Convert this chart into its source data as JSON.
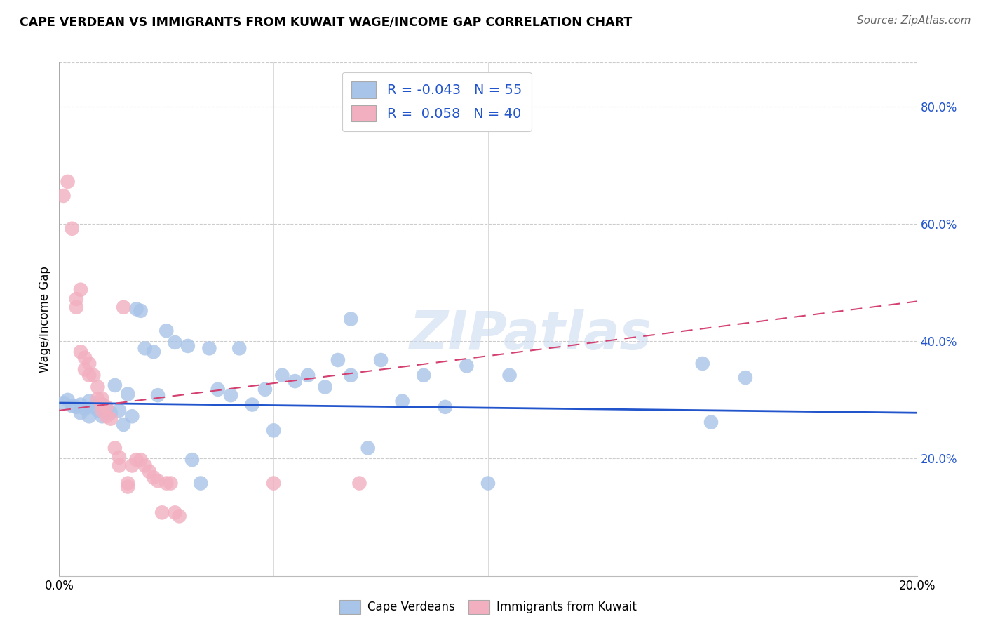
{
  "title": "CAPE VERDEAN VS IMMIGRANTS FROM KUWAIT WAGE/INCOME GAP CORRELATION CHART",
  "source": "Source: ZipAtlas.com",
  "ylabel": "Wage/Income Gap",
  "legend_blue_r": "-0.043",
  "legend_blue_n": "55",
  "legend_pink_r": "0.058",
  "legend_pink_n": "40",
  "legend_label_blue": "Cape Verdeans",
  "legend_label_pink": "Immigrants from Kuwait",
  "blue_color": "#a8c4e8",
  "pink_color": "#f2afc0",
  "blue_line_color": "#2255cc",
  "pink_line_color": "#d44070",
  "watermark": "ZIPatlas",
  "blue_scatter": [
    [
      0.001,
      0.295
    ],
    [
      0.002,
      0.3
    ],
    [
      0.003,
      0.29
    ],
    [
      0.004,
      0.288
    ],
    [
      0.005,
      0.292
    ],
    [
      0.005,
      0.278
    ],
    [
      0.006,
      0.285
    ],
    [
      0.007,
      0.298
    ],
    [
      0.007,
      0.272
    ],
    [
      0.008,
      0.288
    ],
    [
      0.009,
      0.282
    ],
    [
      0.01,
      0.292
    ],
    [
      0.01,
      0.272
    ],
    [
      0.011,
      0.285
    ],
    [
      0.012,
      0.278
    ],
    [
      0.013,
      0.325
    ],
    [
      0.014,
      0.282
    ],
    [
      0.015,
      0.258
    ],
    [
      0.016,
      0.31
    ],
    [
      0.017,
      0.272
    ],
    [
      0.018,
      0.455
    ],
    [
      0.019,
      0.452
    ],
    [
      0.02,
      0.388
    ],
    [
      0.022,
      0.382
    ],
    [
      0.023,
      0.308
    ],
    [
      0.025,
      0.418
    ],
    [
      0.027,
      0.398
    ],
    [
      0.03,
      0.392
    ],
    [
      0.031,
      0.198
    ],
    [
      0.033,
      0.158
    ],
    [
      0.035,
      0.388
    ],
    [
      0.037,
      0.318
    ],
    [
      0.04,
      0.308
    ],
    [
      0.042,
      0.388
    ],
    [
      0.045,
      0.292
    ],
    [
      0.048,
      0.318
    ],
    [
      0.05,
      0.248
    ],
    [
      0.052,
      0.342
    ],
    [
      0.055,
      0.332
    ],
    [
      0.058,
      0.342
    ],
    [
      0.062,
      0.322
    ],
    [
      0.065,
      0.368
    ],
    [
      0.068,
      0.438
    ],
    [
      0.068,
      0.342
    ],
    [
      0.072,
      0.218
    ],
    [
      0.075,
      0.368
    ],
    [
      0.08,
      0.298
    ],
    [
      0.085,
      0.342
    ],
    [
      0.09,
      0.288
    ],
    [
      0.095,
      0.358
    ],
    [
      0.1,
      0.158
    ],
    [
      0.105,
      0.342
    ],
    [
      0.15,
      0.362
    ],
    [
      0.152,
      0.262
    ],
    [
      0.16,
      0.338
    ]
  ],
  "pink_scatter": [
    [
      0.001,
      0.648
    ],
    [
      0.002,
      0.672
    ],
    [
      0.003,
      0.592
    ],
    [
      0.004,
      0.472
    ],
    [
      0.004,
      0.458
    ],
    [
      0.005,
      0.488
    ],
    [
      0.005,
      0.382
    ],
    [
      0.006,
      0.372
    ],
    [
      0.006,
      0.352
    ],
    [
      0.007,
      0.362
    ],
    [
      0.007,
      0.342
    ],
    [
      0.008,
      0.342
    ],
    [
      0.009,
      0.322
    ],
    [
      0.009,
      0.302
    ],
    [
      0.01,
      0.302
    ],
    [
      0.01,
      0.292
    ],
    [
      0.01,
      0.282
    ],
    [
      0.011,
      0.288
    ],
    [
      0.011,
      0.272
    ],
    [
      0.012,
      0.268
    ],
    [
      0.013,
      0.218
    ],
    [
      0.014,
      0.202
    ],
    [
      0.014,
      0.188
    ],
    [
      0.015,
      0.458
    ],
    [
      0.016,
      0.158
    ],
    [
      0.016,
      0.152
    ],
    [
      0.017,
      0.188
    ],
    [
      0.018,
      0.198
    ],
    [
      0.019,
      0.198
    ],
    [
      0.02,
      0.188
    ],
    [
      0.021,
      0.178
    ],
    [
      0.022,
      0.168
    ],
    [
      0.023,
      0.162
    ],
    [
      0.024,
      0.108
    ],
    [
      0.025,
      0.158
    ],
    [
      0.026,
      0.158
    ],
    [
      0.027,
      0.108
    ],
    [
      0.028,
      0.102
    ],
    [
      0.05,
      0.158
    ],
    [
      0.07,
      0.158
    ]
  ],
  "xlim": [
    0.0,
    0.2
  ],
  "ylim": [
    0.0,
    0.875
  ],
  "right_yticks": [
    0.2,
    0.4,
    0.6,
    0.8
  ],
  "right_yticklabels": [
    "20.0%",
    "40.0%",
    "60.0%",
    "80.0%"
  ],
  "blue_line_x": [
    0.0,
    0.2
  ],
  "blue_line_y": [
    0.295,
    0.278
  ],
  "pink_line_x": [
    0.0,
    0.2
  ],
  "pink_line_y": [
    0.282,
    0.468
  ]
}
